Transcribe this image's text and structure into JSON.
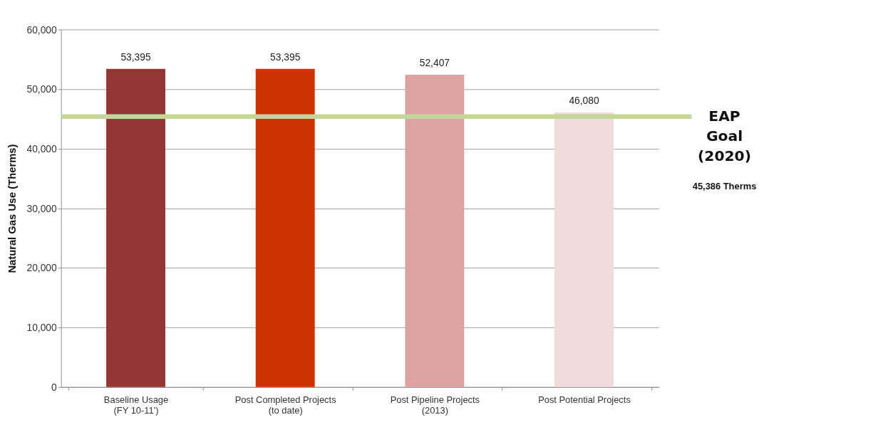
{
  "chart_data": {
    "type": "bar",
    "ylabel": "Natural Gas Use (Therms)",
    "categories": [
      "Baseline Usage\n(FY 10-11')",
      "Post Completed Projects\n(to date)",
      "Post Pipeline Projects\n(2013)",
      "Post Potential Projects"
    ],
    "values": [
      53395,
      53395,
      52407,
      46080
    ],
    "colors": [
      "#943634",
      "#cc3300",
      "#dda2a2",
      "#f0dada"
    ],
    "value_labels": [
      "53,395",
      "53,395",
      "52,407",
      "46,080"
    ],
    "ylim": [
      0,
      60000
    ],
    "yticks": [
      0,
      {
        "value": 10000,
        "label": "10,000"
      },
      {
        "value": 20000,
        "label": "20,000"
      },
      {
        "value": 30000,
        "label": "30,000"
      },
      {
        "value": 40000,
        "label": "40,000"
      },
      {
        "value": 50000,
        "label": "50,000"
      },
      {
        "value": 60000,
        "label": "60,000"
      }
    ],
    "grid": "y",
    "ref_lines": [
      {
        "axis": "y",
        "value": 45386,
        "label": "EAP Goal (2020)",
        "color": "#c3d69b"
      }
    ],
    "annotations": [
      "45,386 Therms"
    ]
  }
}
